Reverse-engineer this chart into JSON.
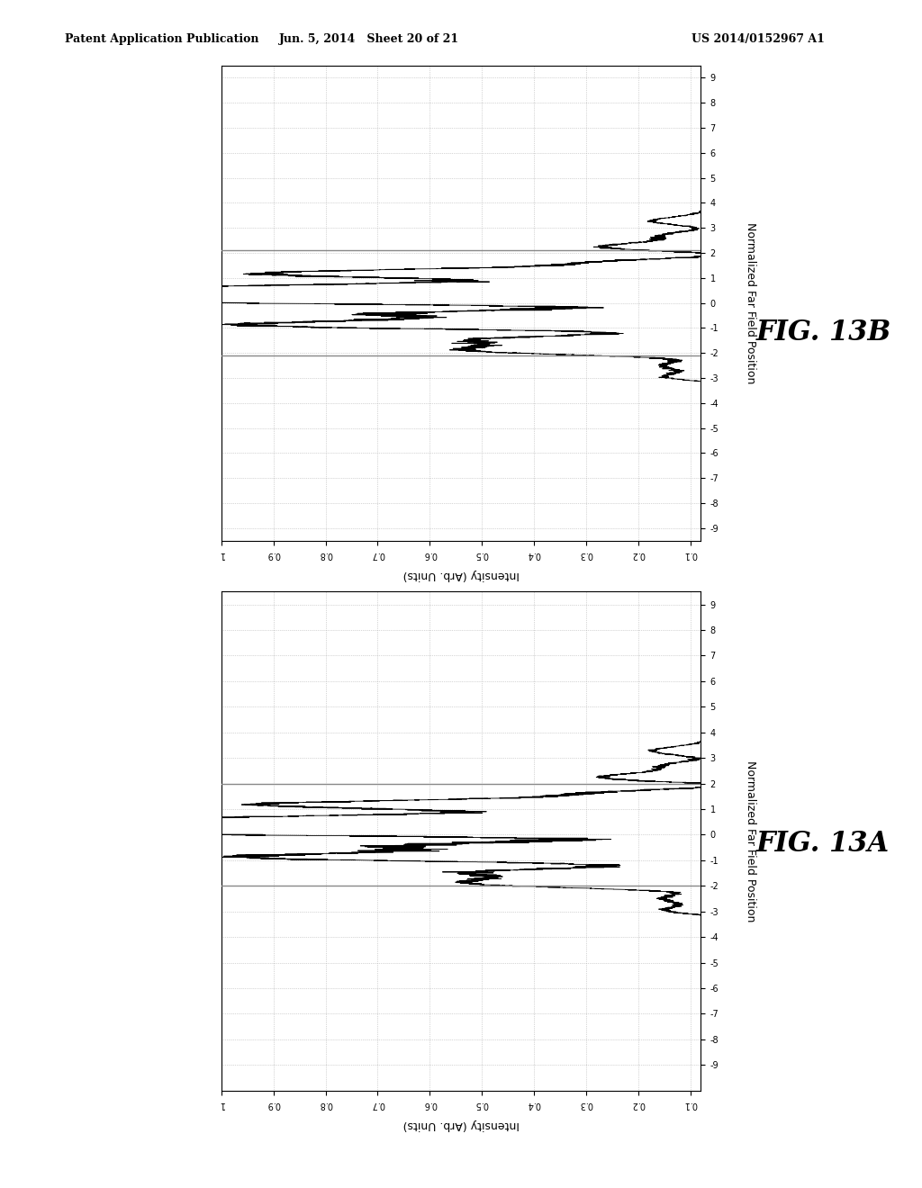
{
  "header_left": "Patent Application Publication",
  "header_center": "Jun. 5, 2014   Sheet 20 of 21",
  "header_right": "US 2014/0152967 A1",
  "fig_label_A": "FIG. 13A",
  "fig_label_B": "FIG. 13B",
  "xlabel": "Intensity (Arb. Units)",
  "ylabel": "Normalized Far Field Position",
  "x_ticks": [
    1,
    0.9,
    0.8,
    0.7,
    0.6,
    0.5,
    0.4,
    0.3,
    0.2,
    0.1
  ],
  "x_tick_labels": [
    "1",
    "0.9",
    "0.8",
    "0.7",
    "0.6",
    "0.5",
    "0.4",
    "0.3",
    "0.2",
    "0.1"
  ],
  "y_ticks": [
    -9,
    -8,
    -7,
    -6,
    -5,
    -4,
    -3,
    -2,
    -1,
    0,
    1,
    2,
    3,
    4,
    5,
    6,
    7,
    8,
    9
  ],
  "xlim": [
    1.02,
    0.08
  ],
  "ylim_B": [
    -9.5,
    9.5
  ],
  "ylim_A": [
    -10.0,
    9.5
  ],
  "background": "#ffffff",
  "line_color": "#000000",
  "gray_color": "#888888",
  "grid_color": "#b0b0b0",
  "header_fontsize": 9,
  "fig_label_fontsize": 22,
  "tick_fontsize": 7,
  "axis_label_fontsize": 9
}
